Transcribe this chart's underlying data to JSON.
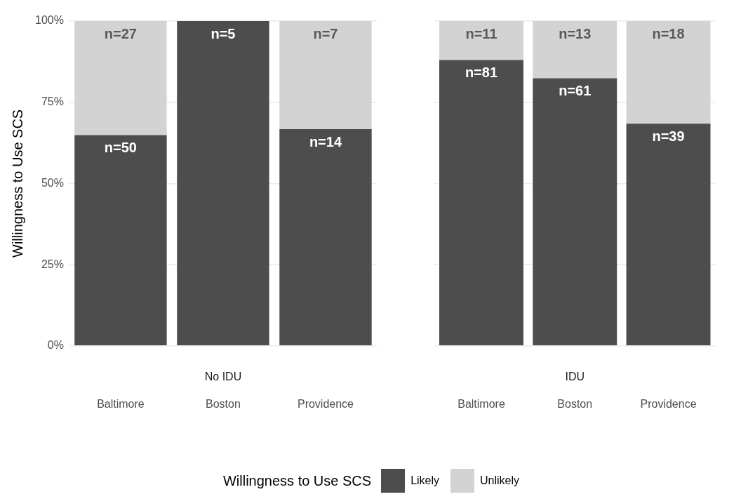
{
  "chart_data": [
    {
      "type": "bar",
      "title": "No IDU",
      "ylabel": "Willingness to Use SCS",
      "legend_title": "Willingness to Use SCS",
      "legend": "bottom",
      "stacked": true,
      "grid": true,
      "categories": [
        "Baltimore",
        "Boston",
        "Providence"
      ],
      "ylim": [
        0,
        100
      ],
      "yticks": [
        {
          "value": 0,
          "label": "0%"
        },
        {
          "value": 25,
          "label": "25%"
        },
        {
          "value": 50,
          "label": "50%"
        },
        {
          "value": 75,
          "label": "75%"
        },
        {
          "value": 100,
          "label": "100%"
        }
      ],
      "series": [
        {
          "name": "Likely",
          "color": "#4d4d4d",
          "values": [
            64.9,
            100,
            66.7
          ]
        },
        {
          "name": "Unlikely",
          "color": "#d3d3d3",
          "values": [
            35.1,
            0,
            33.3
          ]
        }
      ],
      "annotations": [
        {
          "text": "n=50",
          "x": "Baltimore",
          "y": 64.9
        },
        {
          "text": "n=5",
          "x": "Boston",
          "y": 100
        },
        {
          "text": "n=14",
          "x": "Providence",
          "y": 66.7
        },
        {
          "text": "n=27",
          "x": "Baltimore",
          "y": 100
        },
        {
          "text": "n=7",
          "x": "Providence",
          "y": 100
        }
      ]
    },
    {
      "type": "bar",
      "title": "IDU",
      "legend": false,
      "stacked": true,
      "grid": true,
      "tick_labels": "x",
      "categories": [
        "Baltimore",
        "Boston",
        "Providence"
      ],
      "ylim": [
        0,
        100
      ],
      "yticks": [
        {
          "value": 0,
          "label": null
        },
        {
          "value": 25,
          "label": null
        },
        {
          "value": 50,
          "label": null
        },
        {
          "value": 75,
          "label": null
        },
        {
          "value": 100,
          "label": null
        }
      ],
      "series": [
        {
          "color": "#4d4d4d",
          "values": [
            88.0,
            82.4,
            68.4
          ]
        },
        {
          "color": "#d3d3d3",
          "values": [
            12.0,
            17.6,
            31.6
          ]
        }
      ],
      "annotations": [
        {
          "text": "n=81",
          "x": "Baltimore",
          "y": 88.0
        },
        {
          "text": "n=61",
          "x": "Boston",
          "y": 82.4
        },
        {
          "text": "n=39",
          "x": "Providence",
          "y": 68.4
        },
        {
          "text": "n=11",
          "x": "Baltimore",
          "y": 100
        },
        {
          "text": "n=13",
          "x": "Boston",
          "y": 100
        },
        {
          "text": "n=18",
          "x": "Providence",
          "y": 100
        }
      ]
    }
  ]
}
